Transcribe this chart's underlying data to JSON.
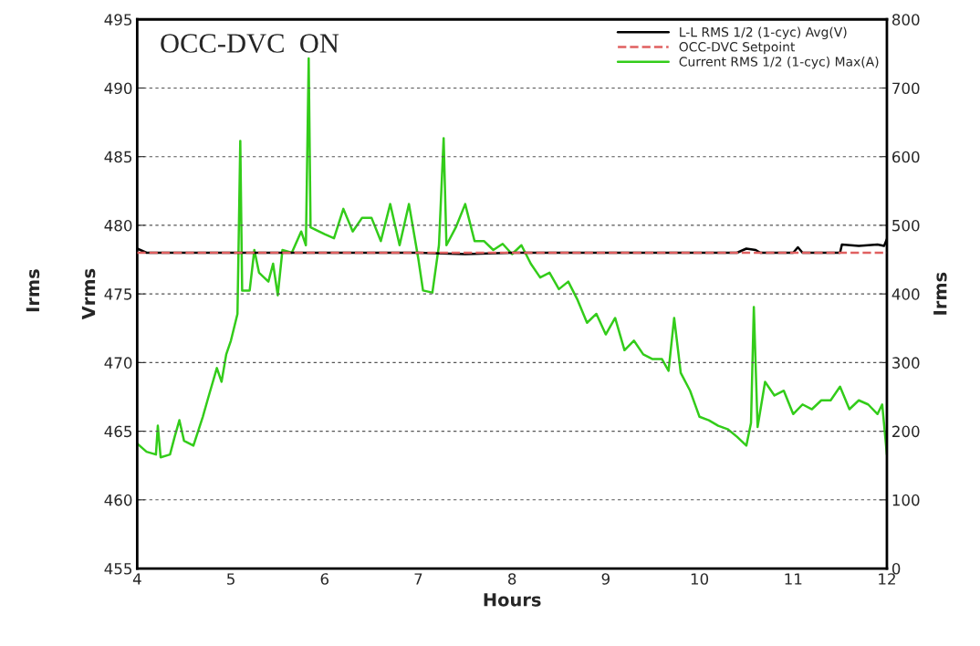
{
  "chart_data": {
    "type": "line",
    "title": "OCC-DVC  ON",
    "xlabel": "Hours",
    "ylabel": "Vrms",
    "y2label": "Irms",
    "annotations": [
      "Irms"
    ],
    "xlim": [
      4,
      12
    ],
    "xticks": [
      4,
      5,
      6,
      7,
      8,
      9,
      10,
      11,
      12
    ],
    "ylim": [
      455,
      495
    ],
    "yticks": [
      455,
      460,
      465,
      470,
      475,
      480,
      485,
      490,
      495
    ],
    "y2lim": [
      0,
      800
    ],
    "y2ticks": [
      0,
      100,
      200,
      300,
      400,
      500,
      600,
      700,
      800
    ],
    "grid": "y",
    "legend": "top right",
    "series": [
      {
        "name": "L-L RMS 1/2 (1-cyc) Avg(V)",
        "color": "#000000",
        "line_style": "solid",
        "x": [
          4,
          4.1,
          5,
          6,
          7,
          7.5,
          8,
          10.4,
          10.5,
          10.6,
          10.65,
          11.0,
          11.05,
          11.1,
          11.5,
          11.52,
          11.7,
          11.9,
          11.97,
          12
        ],
        "values": [
          478.3,
          478.0,
          478.0,
          478.0,
          478.0,
          477.9,
          478.0,
          478.0,
          478.3,
          478.2,
          478.0,
          478.0,
          478.4,
          478.0,
          478.0,
          478.6,
          478.5,
          478.6,
          478.5,
          479.0
        ]
      },
      {
        "name": "OCC-DVC Setpoint",
        "color": "#e06060",
        "line_style": "dashed",
        "x": [
          4,
          12
        ],
        "values": [
          478,
          478
        ]
      },
      {
        "name": "Current RMS 1/2 (1-cyc) Max(A)",
        "color": "#33cc1a",
        "line_style": "solid",
        "axis": "y2",
        "x": [
          4.0,
          4.1,
          4.2,
          4.22,
          4.25,
          4.35,
          4.4,
          4.45,
          4.5,
          4.6,
          4.7,
          4.75,
          4.85,
          4.9,
          4.95,
          5.0,
          5.07,
          5.1,
          5.12,
          5.2,
          5.25,
          5.3,
          5.4,
          5.45,
          5.5,
          5.55,
          5.65,
          5.75,
          5.8,
          5.83,
          5.85,
          6.0,
          6.1,
          6.2,
          6.3,
          6.4,
          6.5,
          6.6,
          6.7,
          6.8,
          6.9,
          7.0,
          7.05,
          7.15,
          7.22,
          7.27,
          7.3,
          7.4,
          7.5,
          7.6,
          7.7,
          7.8,
          7.9,
          8.0,
          8.1,
          8.2,
          8.3,
          8.4,
          8.5,
          8.6,
          8.7,
          8.8,
          8.9,
          9.0,
          9.1,
          9.2,
          9.3,
          9.4,
          9.5,
          9.6,
          9.67,
          9.73,
          9.8,
          9.9,
          10.0,
          10.1,
          10.2,
          10.3,
          10.4,
          10.5,
          10.55,
          10.58,
          10.62,
          10.7,
          10.8,
          10.9,
          11.0,
          11.1,
          11.2,
          11.3,
          11.4,
          11.5,
          11.6,
          11.7,
          11.8,
          11.9,
          11.95,
          12.0
        ],
        "values": [
          182,
          170,
          166,
          208,
          162,
          166,
          192,
          216,
          186,
          179,
          221,
          245,
          292,
          272,
          312,
          332,
          371,
          623,
          405,
          405,
          464,
          431,
          418,
          444,
          398,
          464,
          460,
          491,
          471,
          743,
          497,
          487,
          481,
          524,
          491,
          511,
          511,
          477,
          531,
          471,
          531,
          451,
          405,
          402,
          471,
          627,
          471,
          497,
          531,
          477,
          477,
          464,
          473,
          458,
          471,
          444,
          424,
          431,
          407,
          418,
          391,
          358,
          371,
          341,
          365,
          318,
          332,
          312,
          305,
          305,
          288,
          365,
          285,
          259,
          221,
          216,
          208,
          203,
          192,
          179,
          212,
          381,
          206,
          272,
          252,
          259,
          225,
          239,
          232,
          245,
          245,
          265,
          232,
          245,
          239,
          225,
          239,
          166
        ]
      }
    ]
  }
}
